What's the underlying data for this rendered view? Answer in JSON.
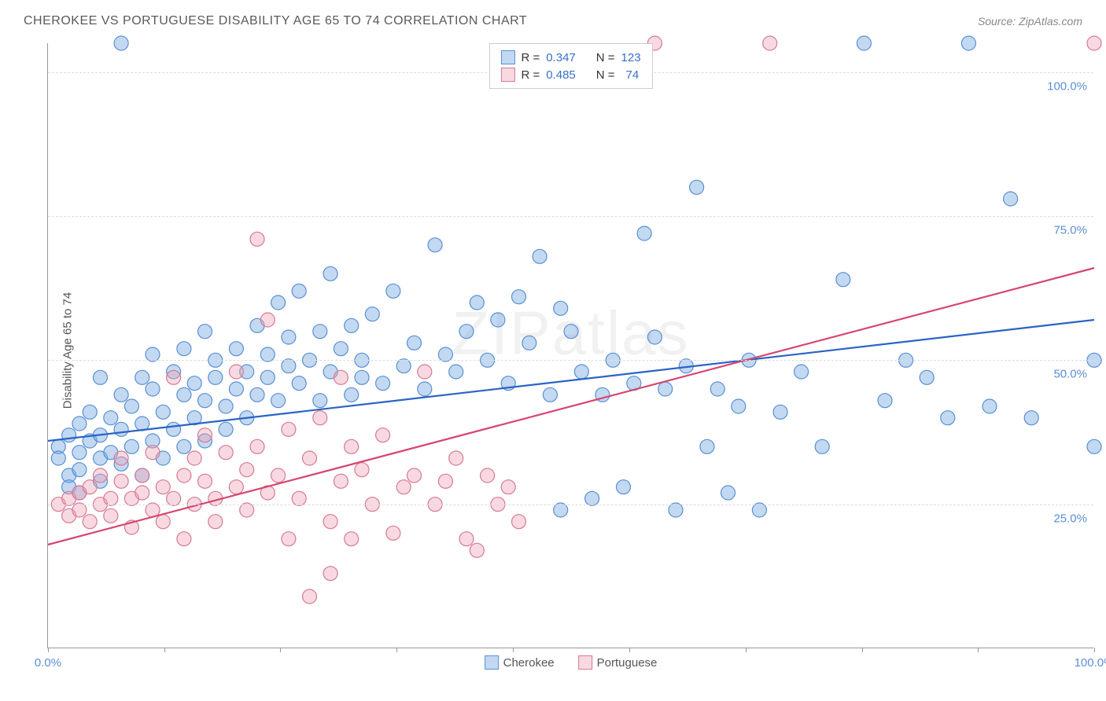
{
  "title": "CHEROKEE VS PORTUGUESE DISABILITY AGE 65 TO 74 CORRELATION CHART",
  "source_label": "Source: ",
  "source_name": "ZipAtlas.com",
  "watermark": "ZIPatlas",
  "ylabel": "Disability Age 65 to 74",
  "chart": {
    "type": "scatter",
    "xlim": [
      0,
      100
    ],
    "ylim": [
      0,
      105
    ],
    "ytick_labels": [
      "25.0%",
      "50.0%",
      "75.0%",
      "100.0%"
    ],
    "ytick_values": [
      25,
      50,
      75,
      100
    ],
    "xtick_values": [
      0,
      11.1,
      22.2,
      33.3,
      44.4,
      55.6,
      66.7,
      77.8,
      88.9,
      100
    ],
    "xtick_label_left": "0.0%",
    "xtick_label_right": "100.0%",
    "grid_color": "#dddddd",
    "axis_color": "#999999",
    "background_color": "#ffffff",
    "label_color": "#5b8fd6",
    "marker_radius": 9,
    "marker_stroke": 1.2,
    "line_width": 2.2,
    "series": [
      {
        "name": "Cherokee",
        "fill": "rgba(120,170,225,0.45)",
        "stroke": "#5b8fd6",
        "line_color": "#2a64c4",
        "R": "0.347",
        "N": "123",
        "trend": {
          "x1": 0,
          "y1": 36,
          "x2": 100,
          "y2": 57
        },
        "points": [
          [
            1,
            35
          ],
          [
            1,
            33
          ],
          [
            2,
            30
          ],
          [
            2,
            37
          ],
          [
            2,
            28
          ],
          [
            3,
            31
          ],
          [
            3,
            39
          ],
          [
            3,
            34
          ],
          [
            3,
            27
          ],
          [
            4,
            36
          ],
          [
            4,
            41
          ],
          [
            5,
            29
          ],
          [
            5,
            33
          ],
          [
            5,
            37
          ],
          [
            5,
            47
          ],
          [
            6,
            34
          ],
          [
            6,
            40
          ],
          [
            7,
            38
          ],
          [
            7,
            32
          ],
          [
            7,
            44
          ],
          [
            7,
            105
          ],
          [
            8,
            35
          ],
          [
            8,
            42
          ],
          [
            9,
            30
          ],
          [
            9,
            47
          ],
          [
            9,
            39
          ],
          [
            10,
            45
          ],
          [
            10,
            51
          ],
          [
            10,
            36
          ],
          [
            11,
            33
          ],
          [
            11,
            41
          ],
          [
            12,
            48
          ],
          [
            12,
            38
          ],
          [
            13,
            35
          ],
          [
            13,
            44
          ],
          [
            13,
            52
          ],
          [
            14,
            46
          ],
          [
            14,
            40
          ],
          [
            15,
            55
          ],
          [
            15,
            43
          ],
          [
            15,
            36
          ],
          [
            16,
            50
          ],
          [
            16,
            47
          ],
          [
            17,
            42
          ],
          [
            17,
            38
          ],
          [
            18,
            52
          ],
          [
            18,
            45
          ],
          [
            19,
            48
          ],
          [
            19,
            40
          ],
          [
            20,
            44
          ],
          [
            20,
            56
          ],
          [
            21,
            47
          ],
          [
            21,
            51
          ],
          [
            22,
            60
          ],
          [
            22,
            43
          ],
          [
            23,
            49
          ],
          [
            23,
            54
          ],
          [
            24,
            46
          ],
          [
            24,
            62
          ],
          [
            25,
            50
          ],
          [
            26,
            43
          ],
          [
            26,
            55
          ],
          [
            27,
            65
          ],
          [
            27,
            48
          ],
          [
            28,
            52
          ],
          [
            29,
            56
          ],
          [
            29,
            44
          ],
          [
            30,
            50
          ],
          [
            30,
            47
          ],
          [
            31,
            58
          ],
          [
            32,
            46
          ],
          [
            33,
            62
          ],
          [
            34,
            49
          ],
          [
            35,
            53
          ],
          [
            36,
            45
          ],
          [
            37,
            70
          ],
          [
            38,
            51
          ],
          [
            39,
            48
          ],
          [
            40,
            55
          ],
          [
            41,
            60
          ],
          [
            42,
            50
          ],
          [
            43,
            57
          ],
          [
            44,
            46
          ],
          [
            45,
            61
          ],
          [
            46,
            53
          ],
          [
            47,
            68
          ],
          [
            48,
            44
          ],
          [
            49,
            24
          ],
          [
            49,
            59
          ],
          [
            50,
            55
          ],
          [
            51,
            48
          ],
          [
            52,
            26
          ],
          [
            53,
            44
          ],
          [
            54,
            50
          ],
          [
            55,
            28
          ],
          [
            56,
            46
          ],
          [
            57,
            72
          ],
          [
            58,
            54
          ],
          [
            59,
            45
          ],
          [
            60,
            24
          ],
          [
            61,
            49
          ],
          [
            62,
            80
          ],
          [
            63,
            35
          ],
          [
            64,
            45
          ],
          [
            65,
            27
          ],
          [
            66,
            42
          ],
          [
            67,
            50
          ],
          [
            68,
            24
          ],
          [
            70,
            41
          ],
          [
            72,
            48
          ],
          [
            74,
            35
          ],
          [
            76,
            64
          ],
          [
            78,
            105
          ],
          [
            80,
            43
          ],
          [
            82,
            50
          ],
          [
            84,
            47
          ],
          [
            86,
            40
          ],
          [
            88,
            105
          ],
          [
            90,
            42
          ],
          [
            92,
            78
          ],
          [
            94,
            40
          ],
          [
            100,
            50
          ],
          [
            100,
            35
          ]
        ]
      },
      {
        "name": "Portuguese",
        "fill": "rgba(240,160,180,0.40)",
        "stroke": "#d67a94",
        "line_color": "#d6476f",
        "R": "0.485",
        "N": "74",
        "trend": {
          "x1": 0,
          "y1": 18,
          "x2": 100,
          "y2": 66
        },
        "points": [
          [
            1,
            25
          ],
          [
            2,
            26
          ],
          [
            2,
            23
          ],
          [
            3,
            27
          ],
          [
            3,
            24
          ],
          [
            4,
            28
          ],
          [
            4,
            22
          ],
          [
            5,
            25
          ],
          [
            5,
            30
          ],
          [
            6,
            26
          ],
          [
            6,
            23
          ],
          [
            7,
            29
          ],
          [
            7,
            33
          ],
          [
            8,
            26
          ],
          [
            8,
            21
          ],
          [
            9,
            30
          ],
          [
            9,
            27
          ],
          [
            10,
            24
          ],
          [
            10,
            34
          ],
          [
            11,
            28
          ],
          [
            11,
            22
          ],
          [
            12,
            47
          ],
          [
            12,
            26
          ],
          [
            13,
            30
          ],
          [
            13,
            19
          ],
          [
            14,
            33
          ],
          [
            14,
            25
          ],
          [
            15,
            29
          ],
          [
            15,
            37
          ],
          [
            16,
            26
          ],
          [
            16,
            22
          ],
          [
            17,
            34
          ],
          [
            18,
            28
          ],
          [
            18,
            48
          ],
          [
            19,
            31
          ],
          [
            19,
            24
          ],
          [
            20,
            35
          ],
          [
            20,
            71
          ],
          [
            21,
            57
          ],
          [
            21,
            27
          ],
          [
            22,
            30
          ],
          [
            23,
            19
          ],
          [
            23,
            38
          ],
          [
            24,
            26
          ],
          [
            25,
            33
          ],
          [
            25,
            9
          ],
          [
            26,
            40
          ],
          [
            27,
            22
          ],
          [
            27,
            13
          ],
          [
            28,
            47
          ],
          [
            28,
            29
          ],
          [
            29,
            19
          ],
          [
            29,
            35
          ],
          [
            30,
            31
          ],
          [
            31,
            25
          ],
          [
            32,
            37
          ],
          [
            33,
            20
          ],
          [
            34,
            28
          ],
          [
            35,
            30
          ],
          [
            36,
            48
          ],
          [
            37,
            25
          ],
          [
            38,
            29
          ],
          [
            39,
            33
          ],
          [
            40,
            19
          ],
          [
            41,
            17
          ],
          [
            42,
            30
          ],
          [
            43,
            25
          ],
          [
            44,
            28
          ],
          [
            45,
            22
          ],
          [
            58,
            105
          ],
          [
            69,
            105
          ],
          [
            100,
            105
          ]
        ]
      }
    ]
  },
  "legend_top": {
    "r_label": "R =",
    "n_label": "N ="
  },
  "legend_bottom": {
    "items": [
      "Cherokee",
      "Portuguese"
    ]
  }
}
